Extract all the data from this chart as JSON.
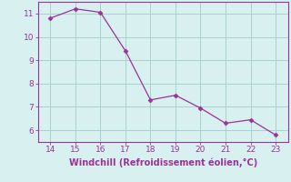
{
  "x": [
    14,
    15,
    16,
    17,
    18,
    19,
    20,
    21,
    22,
    23
  ],
  "y": [
    10.8,
    11.2,
    11.05,
    9.4,
    7.3,
    7.5,
    6.95,
    6.3,
    6.45,
    5.8
  ],
  "line_color": "#993399",
  "marker": "D",
  "marker_size": 2.5,
  "xlabel": "Windchill (Refroidissement éolien,°C)",
  "xlim": [
    13.5,
    23.5
  ],
  "ylim": [
    5.5,
    11.5
  ],
  "xticks": [
    14,
    15,
    16,
    17,
    18,
    19,
    20,
    21,
    22,
    23
  ],
  "yticks": [
    6,
    7,
    8,
    9,
    10,
    11
  ],
  "bg_color": "#d8f0f0",
  "grid_color": "#aacfcf",
  "tick_color": "#993399",
  "label_color": "#993399",
  "font_size": 6.5,
  "xlabel_fontsize": 7.0,
  "linewidth": 0.9
}
